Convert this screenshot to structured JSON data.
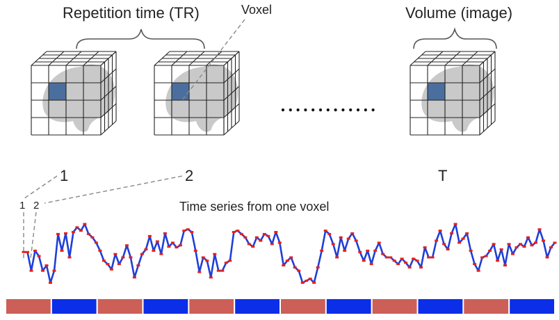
{
  "labels": {
    "tr": "Repetition time (TR)",
    "voxel": "Voxel",
    "volume": "Volume (image)",
    "vol_1": "1",
    "vol_2": "2",
    "vol_t": "T",
    "ts_title": "Time series from one voxel",
    "ts_1": "1",
    "ts_2": "2"
  },
  "colors": {
    "grid": "#222222",
    "brain": "#c9c9c9",
    "voxel": "#4a6f9e",
    "line": "#1f3fd6",
    "marker": "#e8201a",
    "block_red": "#cc5f57",
    "block_blue": "#0b2ee8",
    "dash": "#888888"
  },
  "volumes": [
    "1",
    "2",
    "T"
  ],
  "time_series": [
    0.58,
    0.58,
    0.3,
    0.6,
    0.52,
    0.3,
    0.38,
    0.12,
    0.3,
    0.85,
    0.6,
    0.86,
    0.5,
    0.88,
    0.95,
    0.9,
    1.0,
    0.85,
    0.8,
    0.72,
    0.6,
    0.45,
    0.4,
    0.32,
    0.55,
    0.4,
    0.5,
    0.68,
    0.5,
    0.2,
    0.38,
    0.55,
    0.62,
    0.82,
    0.6,
    0.74,
    0.55,
    0.86,
    0.66,
    0.72,
    0.65,
    0.68,
    0.9,
    0.92,
    0.88,
    0.6,
    0.28,
    0.5,
    0.45,
    0.2,
    0.55,
    0.3,
    0.3,
    0.42,
    0.45,
    0.88,
    0.9,
    0.85,
    0.8,
    0.7,
    0.66,
    0.8,
    0.75,
    0.85,
    0.82,
    0.7,
    0.88,
    0.72,
    0.38,
    0.45,
    0.5,
    0.35,
    0.3,
    0.12,
    0.15,
    0.18,
    0.12,
    0.35,
    0.6,
    0.9,
    0.85,
    0.7,
    0.5,
    0.8,
    0.6,
    0.78,
    0.86,
    0.75,
    0.58,
    0.45,
    0.6,
    0.4,
    0.6,
    0.72,
    0.55,
    0.5,
    0.5,
    0.45,
    0.4,
    0.48,
    0.42,
    0.35,
    0.48,
    0.45,
    0.35,
    0.65,
    0.5,
    0.5,
    0.75,
    0.9,
    0.7,
    0.62,
    0.86,
    1.0,
    0.72,
    0.78,
    0.86,
    0.6,
    0.4,
    0.3,
    0.5,
    0.52,
    0.6,
    0.7,
    0.45,
    0.62,
    0.38,
    0.7,
    0.55,
    0.65,
    0.7,
    0.66,
    0.8,
    0.68,
    0.72,
    0.92,
    0.75,
    0.5,
    0.65,
    0.72
  ],
  "blocks": [
    "red",
    "blue",
    "red",
    "blue",
    "red",
    "blue",
    "red",
    "blue",
    "red",
    "blue",
    "red",
    "blue"
  ]
}
